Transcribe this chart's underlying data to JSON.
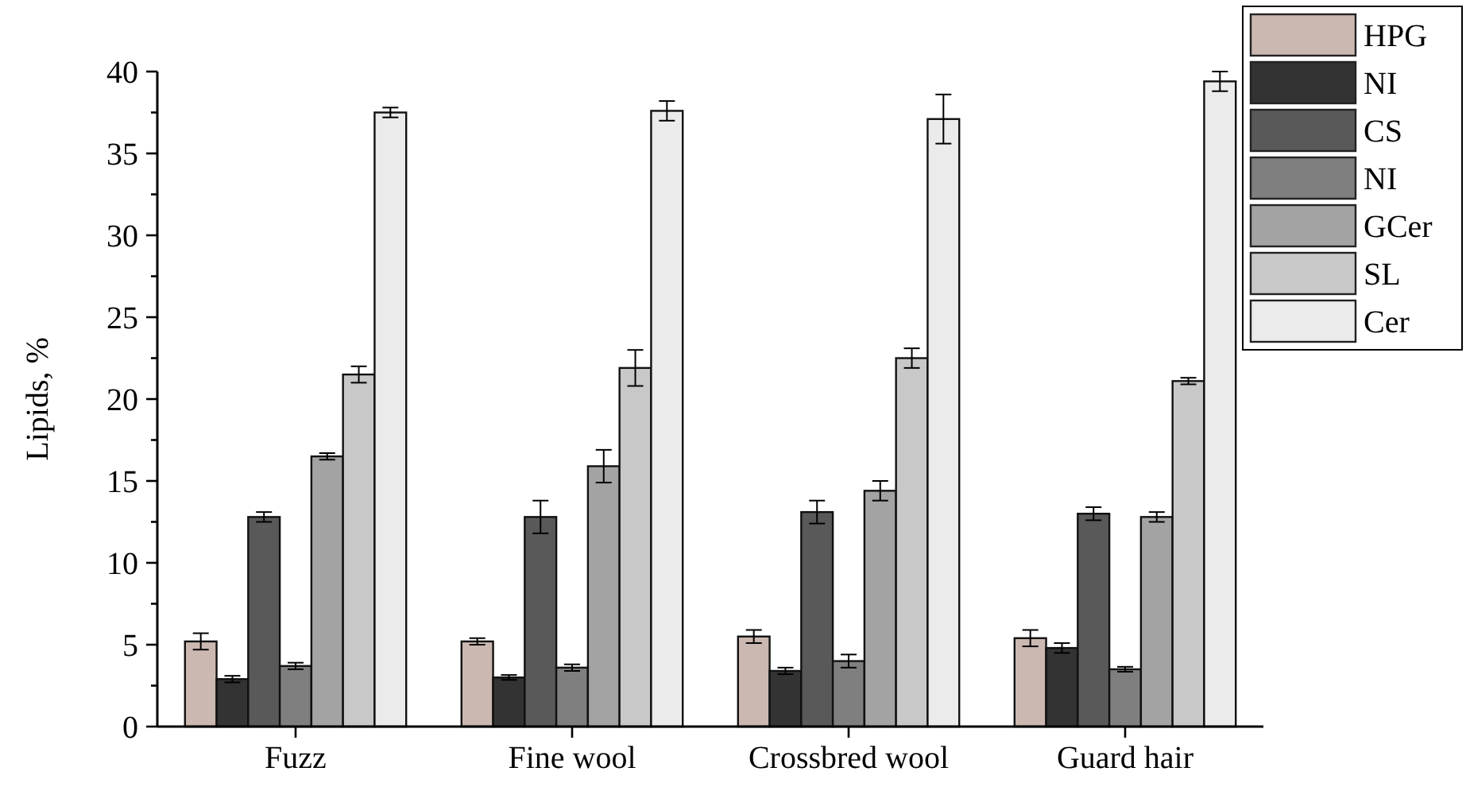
{
  "chart_data": {
    "type": "bar",
    "ylabel": "Lipids, %",
    "categories": [
      "Fuzz",
      "Fine wool",
      "Crossbred wool",
      "Guard hair"
    ],
    "series": [
      {
        "name": "HPG",
        "color": "#cbb8b0",
        "values": [
          5.2,
          5.2,
          5.5,
          5.4
        ],
        "errors": [
          0.5,
          0.2,
          0.4,
          0.5
        ]
      },
      {
        "name": "NI",
        "color": "#333333",
        "values": [
          2.9,
          3.0,
          3.4,
          4.8
        ],
        "errors": [
          0.2,
          0.15,
          0.2,
          0.3
        ]
      },
      {
        "name": "CS",
        "color": "#595959",
        "values": [
          12.8,
          12.8,
          13.1,
          13.0
        ],
        "errors": [
          0.3,
          1.0,
          0.7,
          0.4
        ]
      },
      {
        "name": "NI",
        "color": "#7f7f7f",
        "values": [
          3.7,
          3.6,
          4.0,
          3.5
        ],
        "errors": [
          0.2,
          0.2,
          0.4,
          0.15
        ]
      },
      {
        "name": "GCer",
        "color": "#a3a3a3",
        "values": [
          16.5,
          15.9,
          14.4,
          12.8
        ],
        "errors": [
          0.2,
          1.0,
          0.6,
          0.3
        ]
      },
      {
        "name": "SL",
        "color": "#c8c8c8",
        "values": [
          21.5,
          21.9,
          22.5,
          21.1
        ],
        "errors": [
          0.5,
          1.1,
          0.6,
          0.2
        ]
      },
      {
        "name": "Cer",
        "color": "#ebebeb",
        "values": [
          37.5,
          37.6,
          37.1,
          39.4
        ],
        "errors": [
          0.3,
          0.6,
          1.5,
          0.6
        ]
      }
    ],
    "ylim": [
      0,
      40
    ],
    "yticks": [
      0,
      {
        "value": 2.5,
        "label": null
      },
      5,
      {
        "value": 7.5,
        "label": null
      },
      10,
      {
        "value": 12.5,
        "label": null
      },
      15,
      {
        "value": 17.5,
        "label": null
      },
      20,
      {
        "value": 22.5,
        "label": null
      },
      25,
      {
        "value": 27.5,
        "label": null
      },
      30,
      {
        "value": 32.5,
        "label": null
      },
      35,
      {
        "value": 37.5,
        "label": null
      },
      40
    ],
    "grid": false,
    "legend": "top right"
  }
}
